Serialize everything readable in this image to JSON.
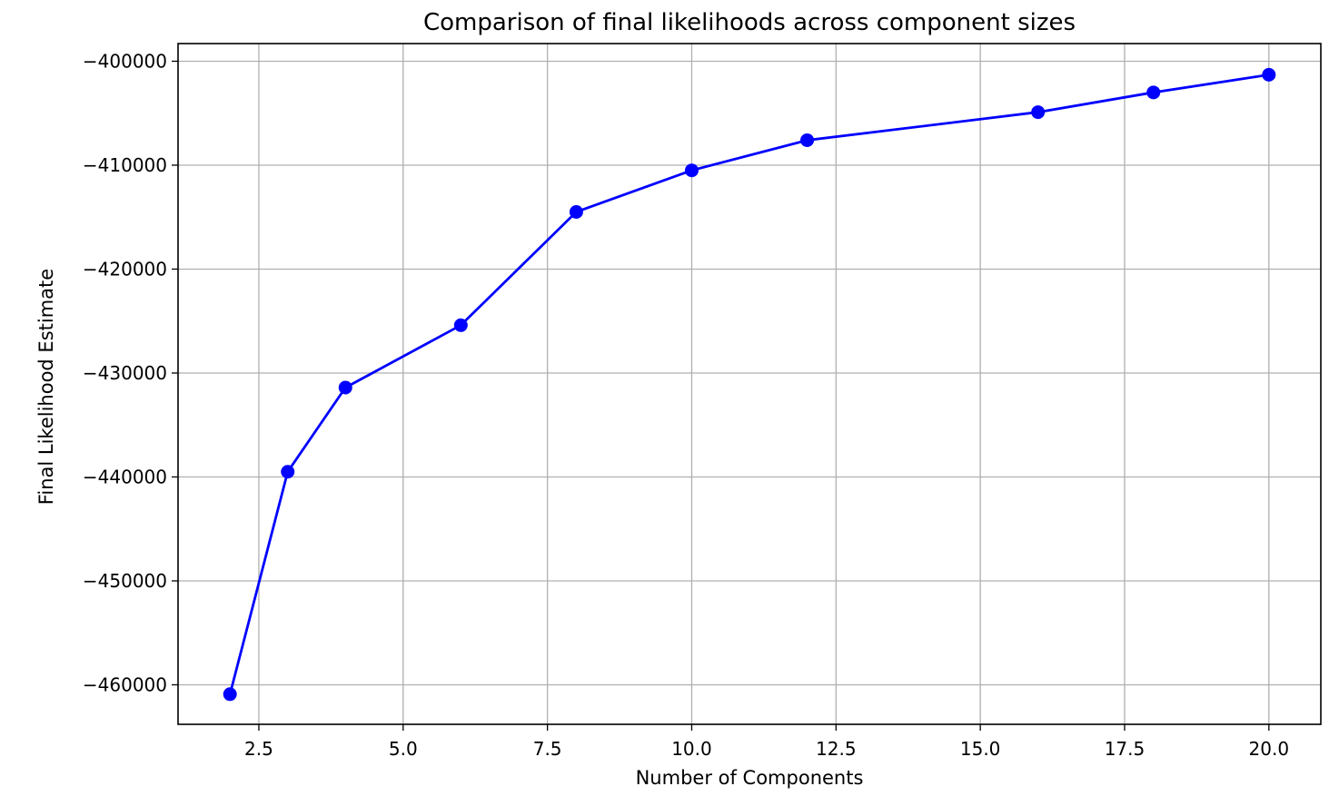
{
  "chart_data": {
    "type": "line",
    "title": "Comparison of final likelihoods across component sizes",
    "xlabel": "Number of Components",
    "ylabel": "Final Likelihood Estimate",
    "xlim": [
      1.1,
      20.9
    ],
    "ylim": [
      -463800,
      -398300
    ],
    "grid": true,
    "x_ticks": [
      2.5,
      5.0,
      7.5,
      10.0,
      12.5,
      15.0,
      17.5,
      20.0
    ],
    "x_tick_labels": [
      "2.5",
      "5.0",
      "7.5",
      "10.0",
      "12.5",
      "15.0",
      "17.5",
      "20.0"
    ],
    "y_ticks": [
      -400000,
      -410000,
      -420000,
      -430000,
      -440000,
      -450000,
      -460000
    ],
    "y_tick_labels": [
      "−400000",
      "−410000",
      "−420000",
      "−430000",
      "−440000",
      "−450000",
      "−460000"
    ],
    "series": [
      {
        "color": "#0000ff",
        "marker": "circle",
        "x": [
          2,
          3,
          4,
          6,
          8,
          10,
          12,
          16,
          18,
          20
        ],
        "y": [
          -460900,
          -439500,
          -431400,
          -425400,
          -414500,
          -410500,
          -407600,
          -404900,
          -403000,
          -401300
        ]
      }
    ]
  }
}
